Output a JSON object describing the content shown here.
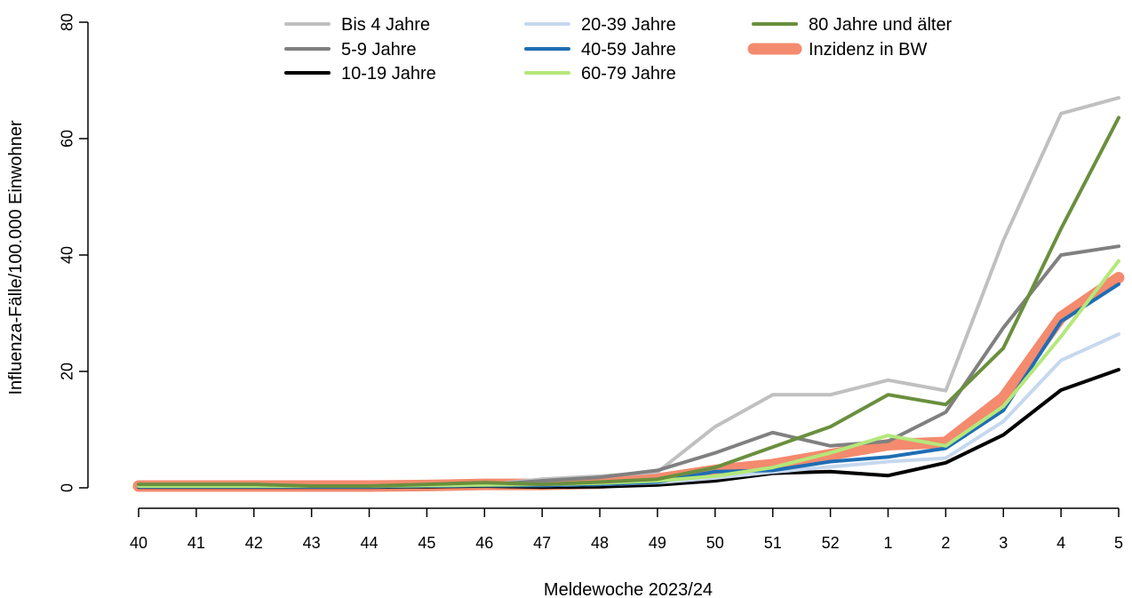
{
  "chart_data": {
    "type": "line",
    "xlabel": "Meldewoche 2023/24",
    "ylabel": "Influenza-Fälle/100.000 Einwohner",
    "ylim": [
      0,
      80
    ],
    "yticks": [
      "0",
      "20",
      "40",
      "60",
      "80"
    ],
    "categories": [
      "40",
      "41",
      "42",
      "43",
      "44",
      "45",
      "46",
      "47",
      "48",
      "49",
      "50",
      "51",
      "52",
      "1",
      "2",
      "3",
      "4",
      "5"
    ],
    "legend_position": "top",
    "series": [
      {
        "name": "Bis 4 Jahre",
        "color": "#c0c0c0",
        "width": 4,
        "values": [
          0.3,
          0.3,
          0.3,
          0.3,
          0.3,
          0.5,
          0.5,
          1.5,
          2.0,
          2.7,
          10.5,
          16.0,
          16.0,
          18.5,
          16.7,
          42.5,
          64.3,
          67.0
        ]
      },
      {
        "name": "5-9 Jahre",
        "color": "#808080",
        "width": 4,
        "values": [
          0.3,
          0.3,
          0.3,
          0.3,
          0.3,
          0.5,
          0.5,
          1.2,
          1.8,
          3.0,
          6.0,
          9.5,
          7.2,
          8.0,
          13.0,
          27.5,
          40.0,
          41.5
        ]
      },
      {
        "name": "10-19 Jahre",
        "color": "#000000",
        "width": 4,
        "values": [
          0.1,
          0.1,
          0.1,
          0.1,
          0.1,
          0.2,
          0.3,
          0.1,
          0.2,
          0.5,
          1.2,
          2.5,
          2.8,
          2.1,
          4.3,
          9.1,
          16.8,
          20.3
        ]
      },
      {
        "name": "20-39 Jahre",
        "color": "#c6d8ee",
        "width": 4,
        "values": [
          0.2,
          0.2,
          0.2,
          0.2,
          0.2,
          0.3,
          0.4,
          0.4,
          0.6,
          0.9,
          1.7,
          2.7,
          3.6,
          4.5,
          5.1,
          11.4,
          21.9,
          26.4
        ]
      },
      {
        "name": "40-59 Jahre",
        "color": "#1f6eb4",
        "width": 4,
        "values": [
          0.2,
          0.2,
          0.2,
          0.2,
          0.2,
          0.3,
          0.4,
          0.4,
          0.6,
          1.0,
          2.8,
          3.0,
          4.5,
          5.3,
          6.8,
          13.3,
          28.6,
          35.0
        ]
      },
      {
        "name": "60-79 Jahre",
        "color": "#b4e87a",
        "width": 4,
        "values": [
          0.3,
          0.3,
          0.3,
          0.3,
          0.3,
          0.4,
          0.5,
          0.6,
          0.8,
          1.2,
          2.0,
          3.5,
          6.0,
          9.0,
          7.2,
          14.0,
          26.0,
          39.0
        ]
      },
      {
        "name": "80 Jahre und älter",
        "color": "#6a8f3e",
        "width": 4,
        "values": [
          0.6,
          0.6,
          0.6,
          0.3,
          0.3,
          0.6,
          0.9,
          0.6,
          1.0,
          1.5,
          3.5,
          7.0,
          10.5,
          16.0,
          14.3,
          24.0,
          44.5,
          63.6
        ]
      },
      {
        "name": "Inzidenz in BW",
        "color": "#f48a6e",
        "width": 13,
        "values": [
          0.3,
          0.3,
          0.3,
          0.3,
          0.3,
          0.4,
          0.6,
          0.6,
          0.8,
          1.5,
          3.0,
          4.0,
          5.7,
          7.4,
          7.8,
          15.5,
          29.3,
          36.1
        ]
      }
    ]
  }
}
